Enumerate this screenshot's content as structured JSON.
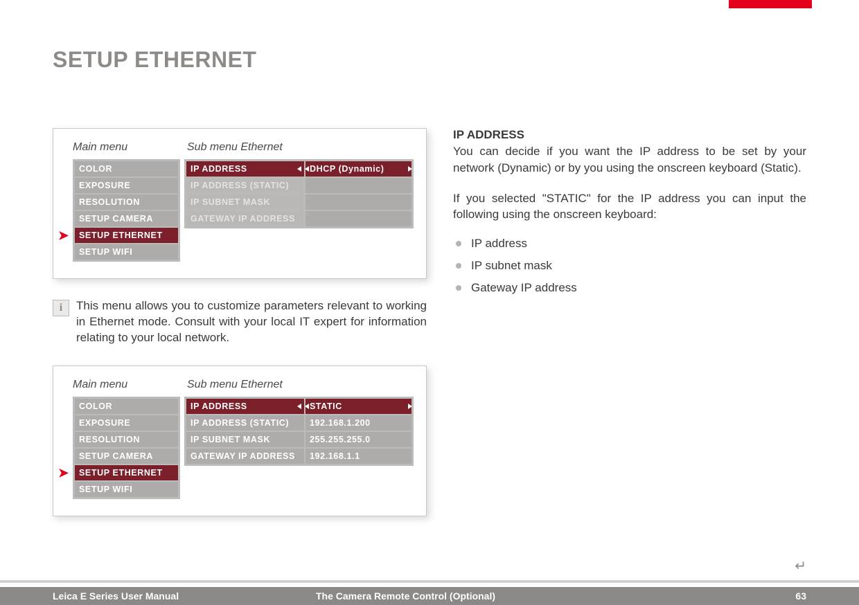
{
  "accent_red": "#e2001a",
  "menu_selected_bg": "#7b1f2b",
  "menu_item_bg": "#aeacaa",
  "title": "SETUP ETHERNET",
  "screenshot1": {
    "main_header": "Main menu",
    "sub_header": "Sub menu Ethernet",
    "main_items": [
      "COLOR",
      "EXPOSURE",
      "RESOLUTION",
      "SETUP CAMERA",
      "SETUP ETHERNET",
      "SETUP WIFI"
    ],
    "main_selected_index": 4,
    "sub_rows": [
      {
        "label": "IP ADDRESS",
        "active": true,
        "value": "DHCP (Dynamic)",
        "value_selected": true
      },
      {
        "label": "IP ADDRESS (STATIC)",
        "dim": true,
        "value": ""
      },
      {
        "label": "IP SUBNET MASK",
        "dim": true,
        "value": ""
      },
      {
        "label": "GATEWAY IP ADDRESS",
        "dim": true,
        "value": ""
      }
    ]
  },
  "info_text": "This menu allows you to customize parameters relevant to working in Ethernet mode. Consult with your local IT expert for information relating to your local network.",
  "screenshot2": {
    "main_header": "Main menu",
    "sub_header": "Sub menu Ethernet",
    "main_items": [
      "COLOR",
      "EXPOSURE",
      "RESOLUTION",
      "SETUP CAMERA",
      "SETUP ETHERNET",
      "SETUP WIFI"
    ],
    "main_selected_index": 4,
    "sub_rows": [
      {
        "label": "IP ADDRESS",
        "active": true,
        "value": "STATIC",
        "value_selected": true
      },
      {
        "label": "IP ADDRESS (STATIC)",
        "value": "192.168.1.200"
      },
      {
        "label": "IP SUBNET MASK",
        "value": "255.255.255.0"
      },
      {
        "label": "GATEWAY IP ADDRESS",
        "value": "192.168.1.1"
      }
    ]
  },
  "right": {
    "heading": "IP ADDRESS",
    "p1": "You can decide if you want the IP address to be set by your network (Dynamic) or by you using the onscreen keyboard (Static).",
    "p2": "If you selected \"STATIC\" for the IP address you can input the following using the onscreen keyboard:",
    "bullets": [
      "IP address",
      "IP subnet mask",
      "Gateway IP address"
    ]
  },
  "footer": {
    "left": "Leica E Series User Manual",
    "center": "The Camera Remote Control (Optional)",
    "page": "63"
  }
}
